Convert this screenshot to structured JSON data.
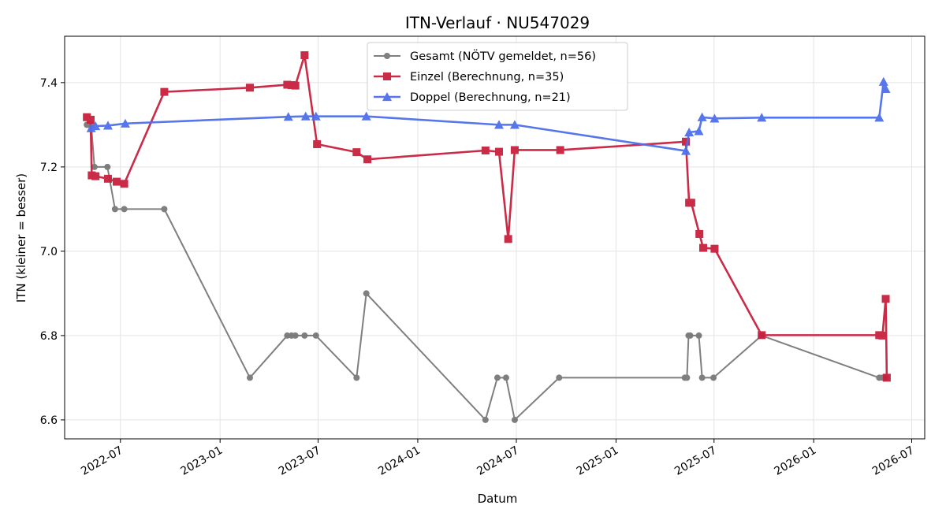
{
  "chart_data": {
    "type": "line",
    "title": "ITN-Verlauf · NU547029",
    "xlabel": "Datum",
    "ylabel": "ITN  (kleiner = besser)",
    "x_axis_type": "date",
    "xlim": [
      "2022-03-20",
      "2026-07-25"
    ],
    "ylim": [
      6.555,
      7.51
    ],
    "x_ticks": [
      "2022-07",
      "2023-01",
      "2023-07",
      "2024-01",
      "2024-07",
      "2025-01",
      "2025-07",
      "2026-01",
      "2026-07"
    ],
    "y_ticks": [
      6.6,
      6.8,
      7.0,
      7.2,
      7.4
    ],
    "y_tick_labels": [
      "6.6",
      "6.8",
      "7.0",
      "7.2",
      "7.4"
    ],
    "grid": true,
    "legend_position": "top-center",
    "series": [
      {
        "name": "Gesamt (NÖTV gemeldet, n=56)",
        "color": "#555555",
        "marker": "circle",
        "points": [
          {
            "x": "2022-04-30",
            "y": 7.3
          },
          {
            "x": "2022-05-04",
            "y": 7.3
          },
          {
            "x": "2022-05-08",
            "y": 7.3
          },
          {
            "x": "2022-05-14",
            "y": 7.2
          },
          {
            "x": "2022-06-07",
            "y": 7.2
          },
          {
            "x": "2022-06-21",
            "y": 7.1
          },
          {
            "x": "2022-07-08",
            "y": 7.1
          },
          {
            "x": "2022-09-20",
            "y": 7.1
          },
          {
            "x": "2023-02-25",
            "y": 6.7
          },
          {
            "x": "2023-05-05",
            "y": 6.8
          },
          {
            "x": "2023-05-13",
            "y": 6.8
          },
          {
            "x": "2023-05-20",
            "y": 6.8
          },
          {
            "x": "2023-06-06",
            "y": 6.8
          },
          {
            "x": "2023-06-27",
            "y": 6.8
          },
          {
            "x": "2023-09-10",
            "y": 6.7
          },
          {
            "x": "2023-09-28",
            "y": 6.9
          },
          {
            "x": "2024-05-05",
            "y": 6.6
          },
          {
            "x": "2024-05-27",
            "y": 6.7
          },
          {
            "x": "2024-06-12",
            "y": 6.7
          },
          {
            "x": "2024-06-28",
            "y": 6.6
          },
          {
            "x": "2024-09-18",
            "y": 6.7
          },
          {
            "x": "2025-05-08",
            "y": 6.7
          },
          {
            "x": "2025-05-12",
            "y": 6.7
          },
          {
            "x": "2025-05-15",
            "y": 6.8
          },
          {
            "x": "2025-05-18",
            "y": 6.8
          },
          {
            "x": "2025-06-03",
            "y": 6.8
          },
          {
            "x": "2025-06-09",
            "y": 6.7
          },
          {
            "x": "2025-06-30",
            "y": 6.7
          },
          {
            "x": "2025-09-27",
            "y": 6.8
          },
          {
            "x": "2026-05-02",
            "y": 6.7
          },
          {
            "x": "2026-05-08",
            "y": 6.7
          },
          {
            "x": "2026-05-13",
            "y": 6.7
          }
        ]
      },
      {
        "name": "Einzel (Berechnung, n=35)",
        "color": "#c8203e",
        "marker": "square",
        "points": [
          {
            "x": "2022-04-30",
            "y": 7.318
          },
          {
            "x": "2022-05-07",
            "y": 7.312
          },
          {
            "x": "2022-05-09",
            "y": 7.18
          },
          {
            "x": "2022-05-16",
            "y": 7.178
          },
          {
            "x": "2022-06-08",
            "y": 7.172
          },
          {
            "x": "2022-06-24",
            "y": 7.165
          },
          {
            "x": "2022-07-08",
            "y": 7.16
          },
          {
            "x": "2022-09-20",
            "y": 7.378
          },
          {
            "x": "2023-02-25",
            "y": 7.388
          },
          {
            "x": "2023-05-05",
            "y": 7.395
          },
          {
            "x": "2023-05-13",
            "y": 7.394
          },
          {
            "x": "2023-05-20",
            "y": 7.393
          },
          {
            "x": "2023-06-06",
            "y": 7.465
          },
          {
            "x": "2023-06-29",
            "y": 7.254
          },
          {
            "x": "2023-09-10",
            "y": 7.235
          },
          {
            "x": "2023-09-30",
            "y": 7.218
          },
          {
            "x": "2024-05-05",
            "y": 7.239
          },
          {
            "x": "2024-05-30",
            "y": 7.236
          },
          {
            "x": "2024-06-16",
            "y": 7.029
          },
          {
            "x": "2024-06-28",
            "y": 7.24
          },
          {
            "x": "2024-09-20",
            "y": 7.24
          },
          {
            "x": "2025-05-10",
            "y": 7.26
          },
          {
            "x": "2025-05-16",
            "y": 7.115
          },
          {
            "x": "2025-05-20",
            "y": 7.115
          },
          {
            "x": "2025-06-04",
            "y": 7.041
          },
          {
            "x": "2025-06-11",
            "y": 7.008
          },
          {
            "x": "2025-07-02",
            "y": 7.006
          },
          {
            "x": "2025-09-27",
            "y": 6.801
          },
          {
            "x": "2026-05-02",
            "y": 6.801
          },
          {
            "x": "2026-05-08",
            "y": 6.8
          },
          {
            "x": "2026-05-14",
            "y": 6.887
          },
          {
            "x": "2026-05-16",
            "y": 6.7
          }
        ]
      },
      {
        "name": "Doppel (Berechnung, n=21)",
        "color": "#4f6fec",
        "marker": "triangle",
        "points": [
          {
            "x": "2022-05-08",
            "y": 7.292
          },
          {
            "x": "2022-05-16",
            "y": 7.297
          },
          {
            "x": "2022-06-08",
            "y": 7.298
          },
          {
            "x": "2022-07-10",
            "y": 7.303
          },
          {
            "x": "2023-05-07",
            "y": 7.319
          },
          {
            "x": "2023-06-08",
            "y": 7.32
          },
          {
            "x": "2023-06-27",
            "y": 7.32
          },
          {
            "x": "2023-09-28",
            "y": 7.32
          },
          {
            "x": "2024-05-30",
            "y": 7.3
          },
          {
            "x": "2024-06-28",
            "y": 7.3
          },
          {
            "x": "2025-05-10",
            "y": 7.238
          },
          {
            "x": "2025-05-16",
            "y": 7.282
          },
          {
            "x": "2025-06-03",
            "y": 7.285
          },
          {
            "x": "2025-06-09",
            "y": 7.318
          },
          {
            "x": "2025-07-02",
            "y": 7.315
          },
          {
            "x": "2025-09-27",
            "y": 7.317
          },
          {
            "x": "2026-05-02",
            "y": 7.317
          },
          {
            "x": "2026-05-10",
            "y": 7.402
          },
          {
            "x": "2026-05-14",
            "y": 7.385
          }
        ]
      }
    ]
  }
}
